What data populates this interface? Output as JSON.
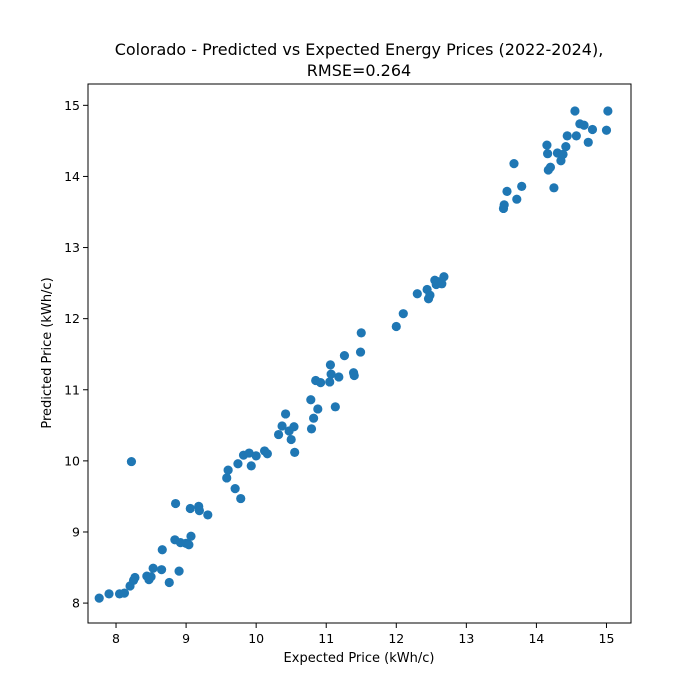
{
  "chart_data": {
    "type": "scatter",
    "title_line1": "Colorado - Predicted vs Expected Energy Prices (2022-2024),",
    "title_line2": "RMSE=0.264",
    "xlabel": "Expected Price (kWh/c)",
    "ylabel": "Predicted Price (kWh/c)",
    "xlim": [
      7.6,
      15.35
    ],
    "ylim": [
      7.72,
      15.3
    ],
    "xticks": [
      8,
      9,
      10,
      11,
      12,
      13,
      14,
      15
    ],
    "yticks": [
      8,
      9,
      10,
      11,
      12,
      13,
      14,
      15
    ],
    "grid": false,
    "marker_color": "#1f77b4",
    "points": [
      [
        7.76,
        8.07
      ],
      [
        7.9,
        8.13
      ],
      [
        8.05,
        8.13
      ],
      [
        8.12,
        8.14
      ],
      [
        8.2,
        8.24
      ],
      [
        8.25,
        8.32
      ],
      [
        8.27,
        8.36
      ],
      [
        8.44,
        8.38
      ],
      [
        8.47,
        8.33
      ],
      [
        8.5,
        8.37
      ],
      [
        8.53,
        8.49
      ],
      [
        8.65,
        8.47
      ],
      [
        8.66,
        8.75
      ],
      [
        8.76,
        8.29
      ],
      [
        8.84,
        8.89
      ],
      [
        8.9,
        8.45
      ],
      [
        8.92,
        8.85
      ],
      [
        9.0,
        8.84
      ],
      [
        9.04,
        8.82
      ],
      [
        9.06,
        9.33
      ],
      [
        9.07,
        8.94
      ],
      [
        9.18,
        9.36
      ],
      [
        9.19,
        9.3
      ],
      [
        9.31,
        9.24
      ],
      [
        8.85,
        9.4
      ],
      [
        8.22,
        9.99
      ],
      [
        9.58,
        9.76
      ],
      [
        9.6,
        9.87
      ],
      [
        9.7,
        9.61
      ],
      [
        9.74,
        9.96
      ],
      [
        9.78,
        9.47
      ],
      [
        9.82,
        10.08
      ],
      [
        9.9,
        10.11
      ],
      [
        9.93,
        9.93
      ],
      [
        10.0,
        10.07
      ],
      [
        10.12,
        10.14
      ],
      [
        10.16,
        10.1
      ],
      [
        10.32,
        10.37
      ],
      [
        10.37,
        10.49
      ],
      [
        10.42,
        10.66
      ],
      [
        10.47,
        10.42
      ],
      [
        10.5,
        10.3
      ],
      [
        10.54,
        10.48
      ],
      [
        10.55,
        10.12
      ],
      [
        10.78,
        10.86
      ],
      [
        10.79,
        10.45
      ],
      [
        10.82,
        10.6
      ],
      [
        10.85,
        11.13
      ],
      [
        10.88,
        10.73
      ],
      [
        10.92,
        11.1
      ],
      [
        11.05,
        11.11
      ],
      [
        11.06,
        11.35
      ],
      [
        11.07,
        11.22
      ],
      [
        11.13,
        10.76
      ],
      [
        11.18,
        11.18
      ],
      [
        11.26,
        11.48
      ],
      [
        11.39,
        11.24
      ],
      [
        11.4,
        11.2
      ],
      [
        11.49,
        11.53
      ],
      [
        11.5,
        11.8
      ],
      [
        12.0,
        11.89
      ],
      [
        12.1,
        12.07
      ],
      [
        12.3,
        12.35
      ],
      [
        12.44,
        12.41
      ],
      [
        12.46,
        12.28
      ],
      [
        12.48,
        12.33
      ],
      [
        12.55,
        12.54
      ],
      [
        12.57,
        12.48
      ],
      [
        12.6,
        12.52
      ],
      [
        12.65,
        12.49
      ],
      [
        12.68,
        12.59
      ],
      [
        13.53,
        13.55
      ],
      [
        13.54,
        13.6
      ],
      [
        13.58,
        13.79
      ],
      [
        13.68,
        14.18
      ],
      [
        13.72,
        13.68
      ],
      [
        13.79,
        13.86
      ],
      [
        14.15,
        14.44
      ],
      [
        14.16,
        14.32
      ],
      [
        14.17,
        14.09
      ],
      [
        14.2,
        14.13
      ],
      [
        14.25,
        13.84
      ],
      [
        14.3,
        14.33
      ],
      [
        14.35,
        14.22
      ],
      [
        14.38,
        14.31
      ],
      [
        14.42,
        14.42
      ],
      [
        14.44,
        14.57
      ],
      [
        14.55,
        14.92
      ],
      [
        14.57,
        14.57
      ],
      [
        14.62,
        14.74
      ],
      [
        14.68,
        14.72
      ],
      [
        14.74,
        14.48
      ],
      [
        14.8,
        14.66
      ],
      [
        15.0,
        14.65
      ],
      [
        15.02,
        14.92
      ]
    ]
  }
}
